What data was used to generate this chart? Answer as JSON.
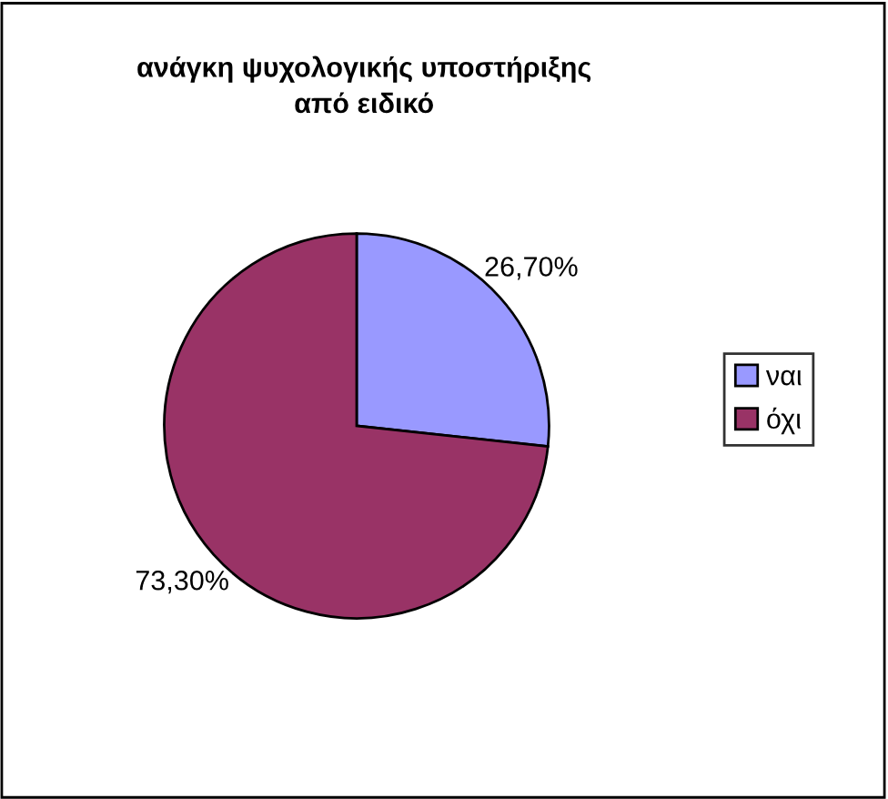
{
  "chart_data": {
    "type": "pie",
    "title": "ανάγκη ψυχολογικής υποστήριξης\nαπό ειδικό",
    "categories": [
      "ναι",
      "όχι"
    ],
    "values": [
      26.7,
      73.3
    ],
    "value_labels": [
      "26,70%",
      "73,30%"
    ],
    "colors": [
      "#9999ff",
      "#993366"
    ],
    "legend": "right"
  }
}
